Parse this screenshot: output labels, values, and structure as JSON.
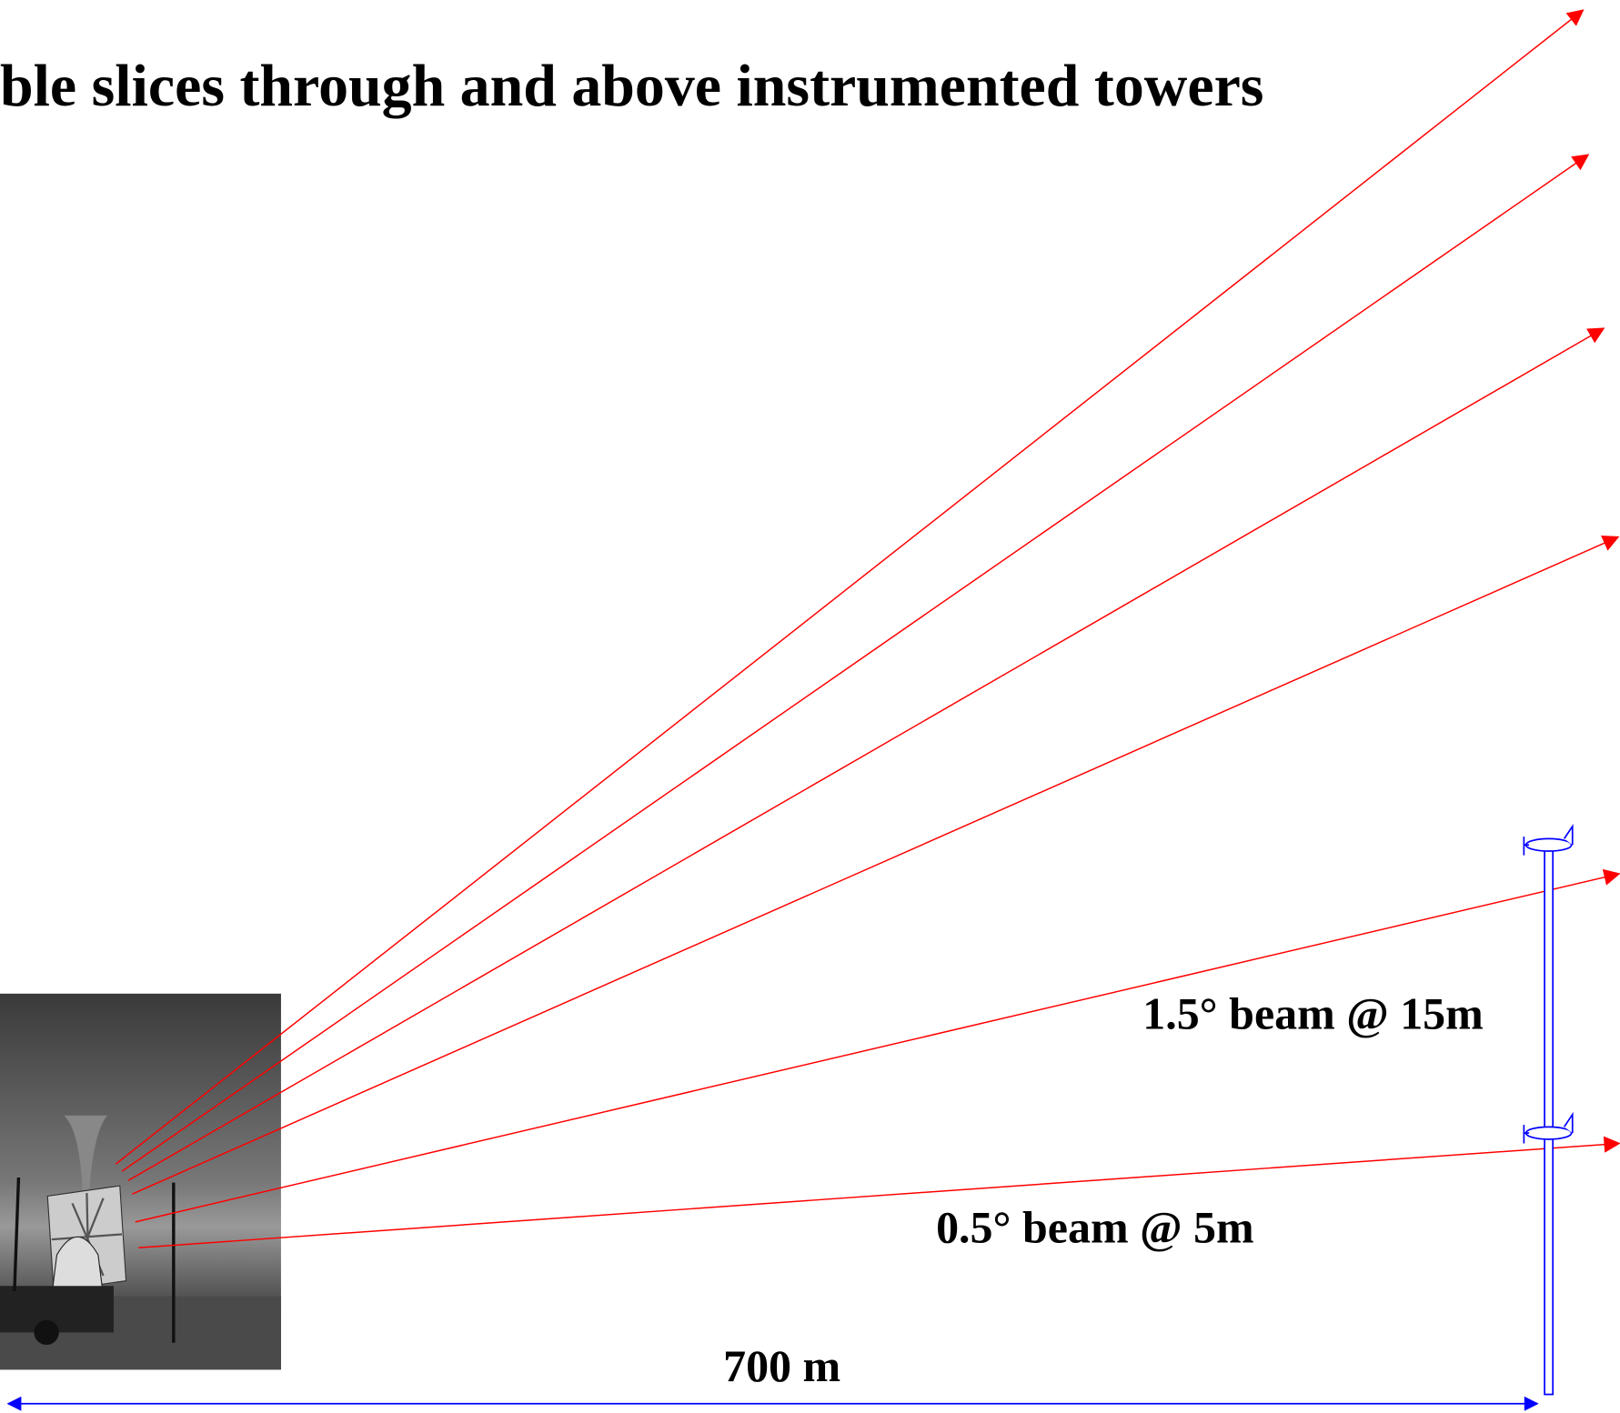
{
  "title": "ble slices through and above instrumented towers",
  "labels": {
    "upper_beam": "1.5° beam @ 15m",
    "lower_beam": "0.5° beam @ 5m",
    "distance": "700 m"
  }
}
